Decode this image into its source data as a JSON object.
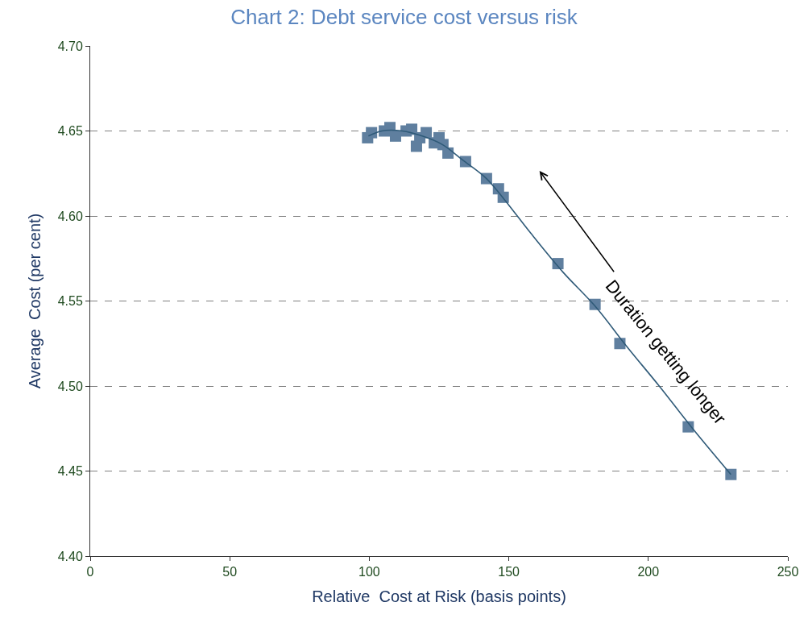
{
  "chart_data": {
    "type": "scatter",
    "title": "Chart 2: Debt service cost versus risk",
    "xlabel": "Relative  Cost at Risk (basis points)",
    "ylabel": "Average  Cost (per cent)",
    "xlim": [
      0,
      250
    ],
    "xticks": [
      0,
      50,
      100,
      150,
      200,
      250
    ],
    "ylim": [
      4.4,
      4.7
    ],
    "yticks": [
      {
        "value": 4.4,
        "label": "4.40"
      },
      {
        "value": 4.45,
        "label": "4.45"
      },
      {
        "value": 4.5,
        "label": "4.50"
      },
      {
        "value": 4.55,
        "label": "4.55"
      },
      {
        "value": 4.6,
        "label": "4.60"
      },
      {
        "value": 4.65,
        "label": "4.65"
      },
      {
        "value": 4.7,
        "label": "4.70"
      }
    ],
    "grid": "y",
    "annotations": [
      "Duration getting longer"
    ],
    "series": [
      {
        "marker": "square",
        "color": "#5f7f9f",
        "x": [
          99.4,
          100.8,
          105.4,
          107.4,
          109.4,
          113.2,
          115.2,
          116.9,
          118.1,
          120.4,
          123.3,
          125.0,
          126.4,
          128.2,
          134.5,
          142.0,
          146.3,
          148.0,
          167.6,
          180.9,
          189.8,
          214.3,
          229.6
        ],
        "values": [
          4.646,
          4.649,
          4.65,
          4.652,
          4.647,
          4.65,
          4.651,
          4.641,
          4.646,
          4.649,
          4.643,
          4.646,
          4.642,
          4.637,
          4.632,
          4.622,
          4.616,
          4.611,
          4.572,
          4.548,
          4.525,
          4.476,
          4.448
        ]
      },
      {
        "type": "line",
        "marker": "none",
        "line_style": "solid",
        "color": "#2f5a78",
        "x": [
          99.7,
          104.5,
          111.8,
          119.0,
          126.2,
          133.4,
          142.0,
          149.2,
          157.8,
          169.4,
          180.9,
          192.4,
          203.9,
          215.4,
          229.6
        ],
        "values": [
          4.647,
          4.65,
          4.65,
          4.647,
          4.642,
          4.633,
          4.622,
          4.608,
          4.59,
          4.567,
          4.547,
          4.523,
          4.5,
          4.476,
          4.448
        ]
      }
    ]
  }
}
